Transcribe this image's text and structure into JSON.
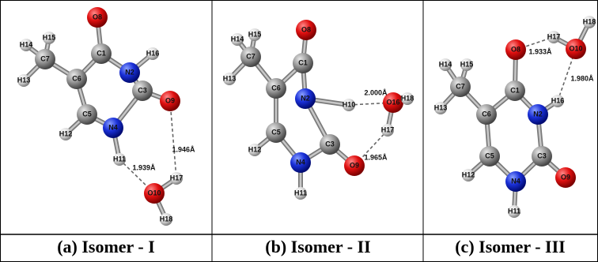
{
  "panels": [
    {
      "caption": "(a) Isomer - I",
      "atoms": [
        "O8",
        "C1",
        "H16",
        "H14",
        "H15",
        "C7",
        "C6",
        "N2",
        "H13",
        "C3",
        "C5",
        "O9",
        "H12",
        "N4",
        "H11",
        "H17",
        "O10",
        "H18"
      ],
      "distances": [
        "1.946Å",
        "1.939Å"
      ]
    },
    {
      "caption": "(b) Isomer - II",
      "atoms": [
        "O8",
        "C1",
        "H14",
        "H15",
        "C7",
        "H13",
        "C6",
        "N2",
        "H10",
        "O16",
        "H18",
        "H17",
        "C3",
        "C5",
        "O9",
        "H12",
        "N4",
        "H11"
      ],
      "distances": [
        "2.000Å",
        "1.965Å"
      ]
    },
    {
      "caption": "(c) Isomer - III",
      "atoms": [
        "H18",
        "H17",
        "O10",
        "O8",
        "C1",
        "H14",
        "H15",
        "C7",
        "H13",
        "C6",
        "N2",
        "H16",
        "C3",
        "O9",
        "C5",
        "H12",
        "N4",
        "H11"
      ],
      "distances": [
        "1.933Å",
        "1.980Å"
      ]
    }
  ]
}
